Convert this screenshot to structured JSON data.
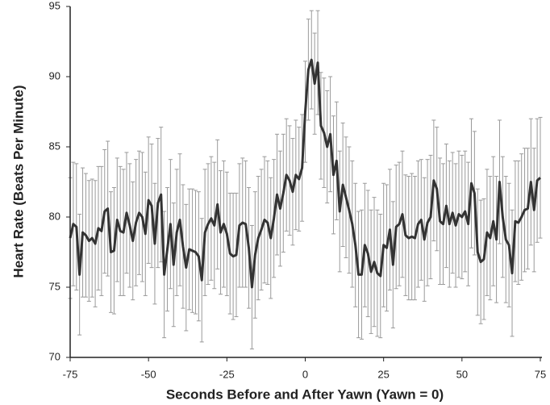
{
  "chart_data": {
    "type": "line-errorbar",
    "x_label": "Seconds Before and After Yawn (Yawn = 0)",
    "y_label": "Heart Rate (Beats Per Minute)",
    "color": "#333333",
    "error_color": "#9a9a9a",
    "x": [
      -75,
      -74,
      -73,
      -72,
      -71,
      -70,
      -69,
      -68,
      -67,
      -66,
      -65,
      -64,
      -63,
      -62,
      -61,
      -60,
      -59,
      -58,
      -57,
      -56,
      -55,
      -54,
      -53,
      -52,
      -51,
      -50,
      -49,
      -48,
      -47,
      -46,
      -45,
      -44,
      -43,
      -42,
      -41,
      -40,
      -39,
      -38,
      -37,
      -36,
      -35,
      -34,
      -33,
      -32,
      -31,
      -30,
      -29,
      -28,
      -27,
      -26,
      -25,
      -24,
      -23,
      -22,
      -21,
      -20,
      -19,
      -18,
      -17,
      -16,
      -15,
      -14,
      -13,
      -12,
      -11,
      -10,
      -9,
      -8,
      -7,
      -6,
      -5,
      -4,
      -3,
      -2,
      -1,
      0,
      1,
      2,
      3,
      4,
      5,
      6,
      7,
      8,
      9,
      10,
      11,
      12,
      13,
      14,
      15,
      16,
      17,
      18,
      19,
      20,
      21,
      22,
      23,
      24,
      25,
      26,
      27,
      28,
      29,
      30,
      31,
      32,
      33,
      34,
      35,
      36,
      37,
      38,
      39,
      40,
      41,
      42,
      43,
      44,
      45,
      46,
      47,
      48,
      49,
      50,
      51,
      52,
      53,
      54,
      55,
      56,
      57,
      58,
      59,
      60,
      61,
      62,
      63,
      64,
      65,
      66,
      67,
      68,
      69,
      70,
      71,
      72,
      73,
      74,
      75
    ],
    "values": [
      78.5,
      79.5,
      79.3,
      75.9,
      78.9,
      78.7,
      78.3,
      78.5,
      78.1,
      79.2,
      79.0,
      80.4,
      80.6,
      77.5,
      77.6,
      79.8,
      79.0,
      78.9,
      80.3,
      79.4,
      78.3,
      79.6,
      80.3,
      80.0,
      78.8,
      81.2,
      80.8,
      78.1,
      81.0,
      81.6,
      75.9,
      77.7,
      79.5,
      76.6,
      78.9,
      79.8,
      77.9,
      76.4,
      77.7,
      77.6,
      77.5,
      77.2,
      75.5,
      78.9,
      79.5,
      79.9,
      79.4,
      80.9,
      78.9,
      79.5,
      78.8,
      77.4,
      77.2,
      77.3,
      79.4,
      79.6,
      79.5,
      77.8,
      75.0,
      77.3,
      78.5,
      79.1,
      79.8,
      79.6,
      78.5,
      79.9,
      81.6,
      80.6,
      81.7,
      83.0,
      82.6,
      81.8,
      83.0,
      82.7,
      83.5,
      87.5,
      90.5,
      91.2,
      89.5,
      91.0,
      86.5,
      86.0,
      85.0,
      85.9,
      83.0,
      84.0,
      80.4,
      82.3,
      81.4,
      80.5,
      79.5,
      78.0,
      75.9,
      75.9,
      78.0,
      77.4,
      76.1,
      76.8,
      76.0,
      75.8,
      78.0,
      77.8,
      79.1,
      76.6,
      79.3,
      79.5,
      80.2,
      78.7,
      78.5,
      78.6,
      78.5,
      79.5,
      79.8,
      78.4,
      79.6,
      80.0,
      82.6,
      82.0,
      79.7,
      79.5,
      80.8,
      79.5,
      80.3,
      79.4,
      80.2,
      80.0,
      80.4,
      79.5,
      82.4,
      81.7,
      77.5,
      76.8,
      77.0,
      78.9,
      78.5,
      79.7,
      78.4,
      82.5,
      80.0,
      78.4,
      78.0,
      76.0,
      79.7,
      79.6,
      80.0,
      80.5,
      80.6,
      82.5,
      80.5,
      82.6,
      82.8
    ],
    "errors": [
      4.3,
      4.4,
      4.5,
      4.3,
      4.6,
      4.4,
      4.3,
      4.2,
      4.5,
      4.4,
      4.6,
      4.4,
      4.8,
      4.3,
      4.5,
      4.4,
      4.6,
      4.5,
      4.3,
      4.4,
      4.2,
      4.5,
      4.4,
      4.6,
      4.4,
      4.5,
      4.4,
      4.3,
      4.6,
      4.8,
      4.5,
      4.4,
      4.6,
      4.4,
      4.5,
      4.7,
      4.4,
      4.5,
      4.3,
      4.4,
      4.4,
      4.6,
      4.4,
      4.5,
      4.3,
      4.4,
      4.5,
      4.6,
      4.4,
      4.5,
      4.4,
      4.3,
      4.5,
      4.4,
      4.4,
      4.6,
      4.5,
      4.3,
      4.4,
      4.5,
      4.4,
      4.3,
      4.5,
      4.4,
      4.3,
      4.2,
      4.3,
      4.1,
      4.2,
      4.0,
      3.9,
      3.8,
      3.9,
      3.7,
      3.8,
      3.6,
      3.6,
      3.5,
      3.6,
      3.7,
      3.8,
      3.9,
      4.0,
      4.1,
      4.2,
      4.2,
      4.3,
      4.4,
      4.3,
      4.5,
      4.5,
      4.4,
      4.5,
      4.6,
      4.4,
      4.5,
      4.4,
      4.6,
      4.5,
      4.4,
      4.4,
      4.5,
      4.3,
      4.5,
      4.4,
      4.4,
      4.5,
      4.3,
      4.4,
      4.5,
      4.4,
      4.5,
      4.3,
      4.4,
      4.5,
      4.4,
      4.3,
      4.4,
      4.5,
      4.3,
      4.4,
      4.5,
      4.3,
      4.4,
      4.5,
      4.4,
      4.3,
      4.4,
      4.6,
      4.4,
      4.5,
      4.4,
      4.3,
      4.5,
      4.4,
      4.6,
      4.5,
      4.4,
      4.3,
      4.5,
      4.4,
      4.5,
      4.3,
      4.4,
      4.5,
      4.4,
      4.3,
      4.5,
      4.4,
      4.4,
      4.3
    ],
    "xlim": [
      -75,
      75
    ],
    "ylim": [
      70,
      95
    ],
    "xticks": [
      -75,
      -50,
      -25,
      0,
      25,
      50,
      75
    ],
    "yticks": [
      70,
      75,
      80,
      85,
      90,
      95
    ]
  }
}
